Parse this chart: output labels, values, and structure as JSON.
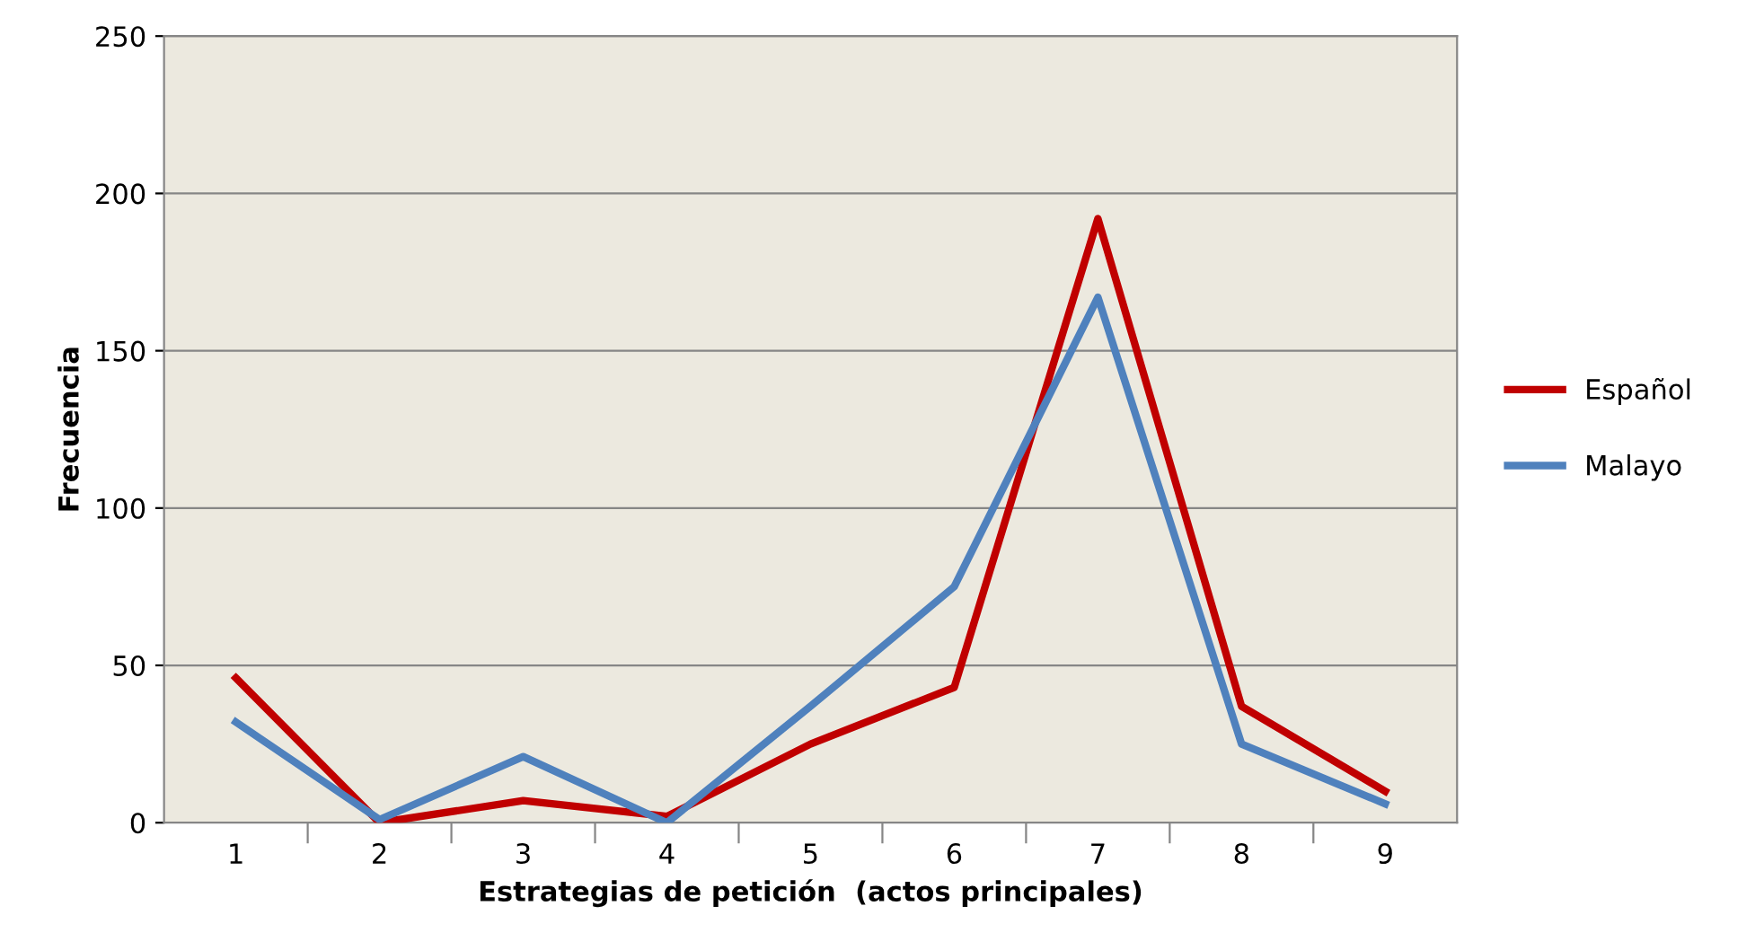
{
  "chart_data": {
    "type": "line",
    "xlabel": "Estrategias de petición  (actos principales)",
    "ylabel": "Frecuencia",
    "categories": [
      "1",
      "2",
      "3",
      "4",
      "5",
      "6",
      "7",
      "8",
      "9"
    ],
    "series": [
      {
        "name": "Español",
        "color": "#c00000",
        "values": [
          46,
          0,
          7,
          2,
          25,
          43,
          192,
          37,
          10
        ]
      },
      {
        "name": "Malayo",
        "color": "#4f81bd",
        "values": [
          32,
          1,
          21,
          0,
          37,
          75,
          167,
          25,
          6
        ]
      }
    ],
    "ylim": [
      0,
      250
    ],
    "yticks": [
      0,
      50,
      100,
      150,
      200,
      250
    ],
    "grid": "y",
    "legend": "right",
    "marker": "none",
    "line_style": "solid"
  }
}
